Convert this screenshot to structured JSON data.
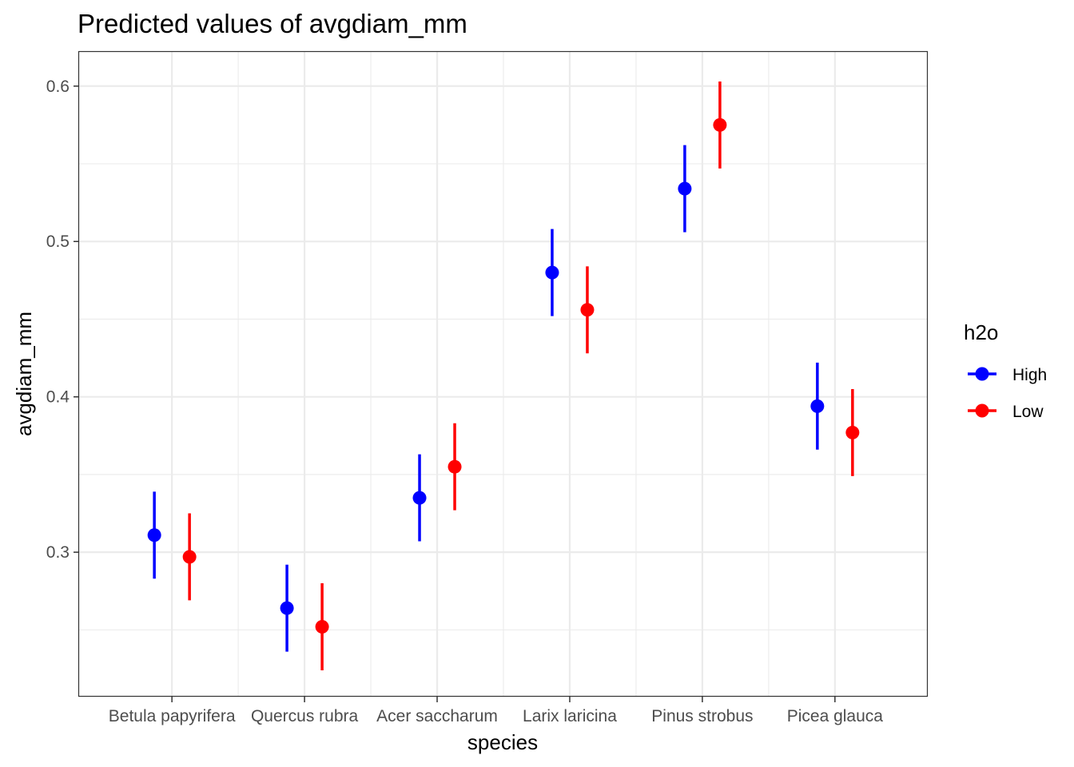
{
  "chart_data": {
    "type": "scatter",
    "subtype": "point-range",
    "title": "Predicted values of avgdiam_mm",
    "xlabel": "species",
    "ylabel": "avgdiam_mm",
    "categories": [
      "Betula papyrifera",
      "Quercus rubra",
      "Acer saccharum",
      "Larix laricina",
      "Pinus strobus",
      "Picea glauca"
    ],
    "ylim": [
      0.207,
      0.622
    ],
    "yticks": [
      0.3,
      0.4,
      0.5,
      0.6
    ],
    "ytick_labels": [
      "0.3",
      "0.4",
      "0.5",
      "0.6"
    ],
    "grid": true,
    "legend": {
      "title": "h2o",
      "position": "right"
    },
    "series": [
      {
        "name": "High",
        "color": "#0000ff",
        "values": [
          0.311,
          0.264,
          0.335,
          0.48,
          0.534,
          0.394
        ],
        "lower": [
          0.283,
          0.236,
          0.307,
          0.452,
          0.506,
          0.366
        ],
        "upper": [
          0.339,
          0.292,
          0.363,
          0.508,
          0.562,
          0.422
        ]
      },
      {
        "name": "Low",
        "color": "#ff0000",
        "values": [
          0.297,
          0.252,
          0.355,
          0.456,
          0.575,
          0.377
        ],
        "lower": [
          0.269,
          0.224,
          0.327,
          0.428,
          0.547,
          0.349
        ],
        "upper": [
          0.325,
          0.28,
          0.383,
          0.484,
          0.603,
          0.405
        ]
      }
    ]
  }
}
